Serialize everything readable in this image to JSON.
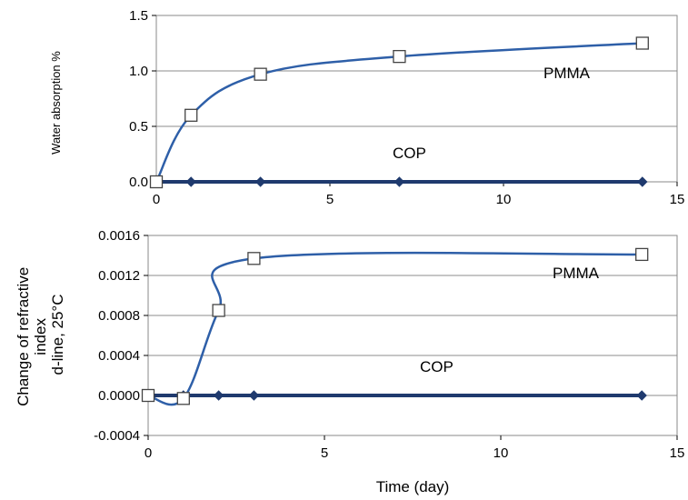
{
  "chart_data": [
    {
      "type": "line",
      "ylabel": "Water absorption  %",
      "xlabel": "",
      "xlim": [
        0,
        15
      ],
      "ylim": [
        0,
        1.5
      ],
      "x_ticks": [
        "0",
        "5",
        "10",
        "15"
      ],
      "y_ticks": [
        "0.0",
        "0.5",
        "1.0",
        "1.5"
      ],
      "grid": "horizontal",
      "series": [
        {
          "name": "PMMA",
          "marker": "open-square",
          "color": "#2e5fa8",
          "x": [
            0,
            1,
            3,
            7,
            14
          ],
          "y": [
            0,
            0.6,
            0.97,
            1.13,
            1.25
          ]
        },
        {
          "name": "COP",
          "marker": "diamond",
          "color": "#1f3a6e",
          "x": [
            0,
            1,
            3,
            7,
            14
          ],
          "y": [
            0,
            0,
            0,
            0,
            0
          ]
        }
      ],
      "annotations": [
        "PMMA",
        "COP"
      ]
    },
    {
      "type": "line",
      "ylabel": [
        "Change of refractive",
        "index",
        "d-line, 25°C"
      ],
      "xlabel": "Time (day)",
      "xlim": [
        0,
        15
      ],
      "ylim": [
        -0.0004,
        0.0016
      ],
      "x_ticks": [
        "0",
        "5",
        "10",
        "15"
      ],
      "y_ticks": [
        "-0.0004",
        "0.0000",
        "0.0004",
        "0.0008",
        "0.0012",
        "0.0016"
      ],
      "grid": "horizontal",
      "series": [
        {
          "name": "PMMA",
          "marker": "open-square",
          "color": "#2e5fa8",
          "x": [
            0,
            1,
            2,
            3,
            14
          ],
          "y": [
            0,
            -3e-05,
            0.00085,
            0.00137,
            0.00141
          ]
        },
        {
          "name": "COP",
          "marker": "diamond",
          "color": "#1f3a6e",
          "x": [
            0,
            1,
            2,
            3,
            14
          ],
          "y": [
            0,
            0,
            0,
            0,
            0
          ]
        }
      ],
      "annotations": [
        "PMMA",
        "COP"
      ]
    }
  ]
}
